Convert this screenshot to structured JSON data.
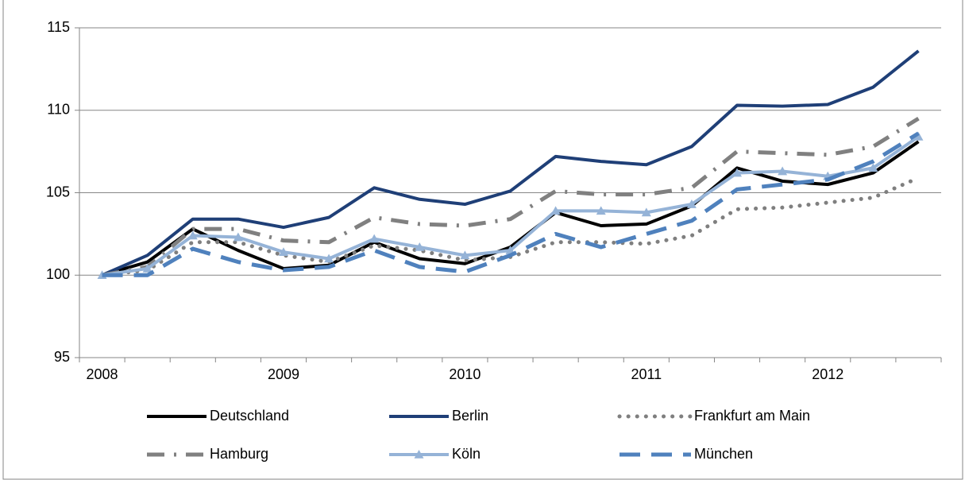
{
  "chart_data": {
    "type": "line",
    "categories": [
      "2008",
      null,
      null,
      null,
      "2009",
      null,
      null,
      null,
      "2010",
      null,
      null,
      null,
      "2011",
      null,
      null,
      null,
      "2012",
      null,
      null
    ],
    "series": [
      {
        "name": "Deutschland",
        "color": "#000000",
        "style": "solid",
        "values": [
          100,
          100.8,
          102.8,
          101.5,
          100.4,
          100.6,
          102.0,
          101.0,
          100.7,
          101.7,
          103.8,
          103.0,
          103.1,
          104.2,
          106.5,
          105.7,
          105.5,
          106.2,
          108.1
        ]
      },
      {
        "name": "Berlin",
        "color": "#1f3f77",
        "style": "solid",
        "values": [
          100,
          101.2,
          103.4,
          103.4,
          102.9,
          103.5,
          105.3,
          104.6,
          104.3,
          105.1,
          107.2,
          106.9,
          106.7,
          107.8,
          110.3,
          110.25,
          110.35,
          111.4,
          113.6
        ]
      },
      {
        "name": "Frankfurt am Main",
        "color": "#7f7f7f",
        "style": "dotted",
        "values": [
          100,
          100.3,
          102.0,
          102.0,
          101.2,
          100.8,
          101.8,
          101.5,
          100.9,
          101.1,
          102.0,
          102.0,
          101.9,
          102.4,
          104.0,
          104.1,
          104.4,
          104.7,
          105.9
        ]
      },
      {
        "name": "Hamburg",
        "color": "#808080",
        "style": "dashdot",
        "values": [
          100,
          100.5,
          102.8,
          102.8,
          102.1,
          102.0,
          103.5,
          103.1,
          103.0,
          103.4,
          105.1,
          104.9,
          104.9,
          105.3,
          107.5,
          107.4,
          107.3,
          107.8,
          109.5
        ]
      },
      {
        "name": "Köln",
        "color": "#95b3d7",
        "style": "solid",
        "marker": "triangle",
        "values": [
          100,
          100.4,
          102.4,
          102.3,
          101.4,
          101.0,
          102.2,
          101.7,
          101.2,
          101.5,
          103.9,
          103.9,
          103.8,
          104.3,
          106.2,
          106.3,
          106.0,
          106.5,
          108.4
        ]
      },
      {
        "name": "München",
        "color": "#4f81bd",
        "style": "dashed",
        "values": [
          100,
          100.0,
          101.6,
          100.8,
          100.3,
          100.5,
          101.5,
          100.5,
          100.2,
          101.2,
          102.5,
          101.7,
          102.5,
          103.3,
          105.2,
          105.5,
          105.8,
          106.9,
          108.6
        ]
      }
    ],
    "ylim": [
      95,
      115
    ],
    "yticks": [
      95,
      100,
      105,
      110,
      115
    ],
    "grid": true,
    "legend": "bottom"
  }
}
